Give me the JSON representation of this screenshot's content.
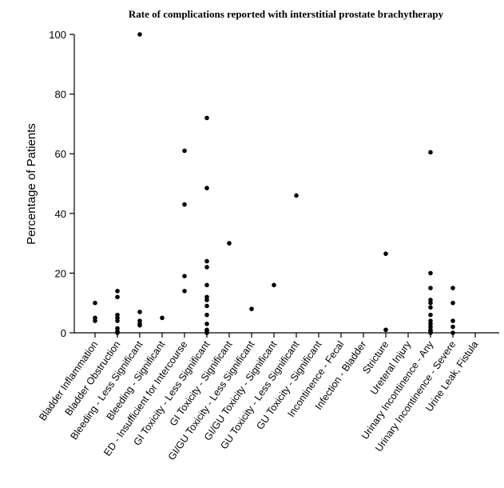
{
  "chart_data": {
    "type": "scatter",
    "title": "Rate of complications reported with interstitial prostate brachytherapy",
    "xlabel": "",
    "ylabel": "Percentage of Patients",
    "ylim": [
      0,
      100
    ],
    "yticks": [
      0,
      20,
      40,
      60,
      80,
      100
    ],
    "grid": false,
    "categories": [
      "Bladder Inflammation",
      "Bladder Obstruction",
      "Bleeding - Less Significant",
      "Bleeding - Significant",
      "ED - Insufficient for Intercourse",
      "GI Toxicity - Less Significant",
      "GI Toxicity - Significant",
      "GI/GU Toxicity - Less Significant",
      "GI/GU Toxicity - Significant",
      "GU Toxicity - Less Significant",
      "GU Toxicity - Significant",
      "Incontinence - Fecal",
      "Infection - Bladder",
      "Stricture",
      "Ureteral Injury",
      "Urinary Incontinence - Any",
      "Urinary Incontinence - Severe",
      "Urine Leak, Fistula"
    ],
    "values": [
      [
        10,
        5,
        4
      ],
      [
        14,
        12,
        6,
        5,
        4,
        1.5,
        0.5,
        0
      ],
      [
        100,
        7,
        4,
        3,
        2.5
      ],
      [
        5
      ],
      [
        61,
        43,
        19,
        14
      ],
      [
        72,
        48.5,
        24,
        22,
        16,
        12,
        11,
        9,
        6,
        3,
        1,
        0.5,
        0
      ],
      [
        30
      ],
      [
        8
      ],
      [
        16
      ],
      [
        46
      ],
      [],
      [],
      [],
      [
        26.5,
        1
      ],
      [],
      [
        60.5,
        20,
        15,
        11,
        10,
        8.5,
        6,
        4,
        3,
        2,
        1,
        0.5,
        0
      ],
      [
        15,
        10,
        4,
        2,
        0
      ],
      []
    ]
  }
}
